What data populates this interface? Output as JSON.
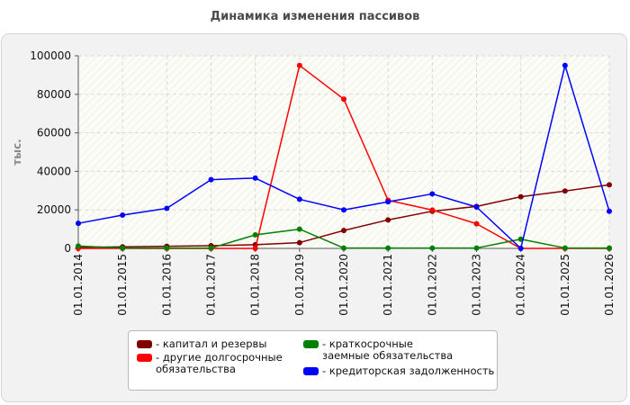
{
  "chart_data": {
    "type": "line",
    "title": "Динамика изменения пассивов",
    "ylabel": "тыс.",
    "xlabel": "",
    "categories": [
      "01.01.2014",
      "01.01.2015",
      "01.01.2016",
      "01.01.2017",
      "01.01.2018",
      "01.01.2019",
      "01.01.2020",
      "01.01.2021",
      "01.01.2022",
      "01.01.2023",
      "01.01.2024",
      "01.01.2025",
      "01.01.2026"
    ],
    "ylim": [
      0,
      100000
    ],
    "yticks": [
      0,
      20000,
      40000,
      60000,
      80000,
      100000
    ],
    "ytick_labels": [
      "0",
      "20000",
      "40000",
      "60000",
      "80000",
      "100000"
    ],
    "grid": true,
    "legend_position": "bottom",
    "series": [
      {
        "name": "капитал и резервы",
        "color": "#800000",
        "values": [
          500,
          800,
          1100,
          1400,
          1900,
          3000,
          9300,
          14800,
          19300,
          21800,
          26800,
          29800,
          33000
        ]
      },
      {
        "name": "другие долгосрочные обязательства",
        "color": "#ff0000",
        "values": [
          0,
          0,
          0,
          0,
          0,
          95000,
          77500,
          25000,
          19900,
          12800,
          0,
          0,
          0
        ]
      },
      {
        "name": "краткосрочные заемные обязательства",
        "color": "#008000",
        "values": [
          1200,
          200,
          200,
          200,
          7000,
          10000,
          200,
          200,
          200,
          200,
          4800,
          200,
          200
        ]
      },
      {
        "name": "кредиторская задолженность",
        "color": "#0000ff",
        "values": [
          13000,
          17300,
          20800,
          35700,
          36500,
          25500,
          20000,
          24200,
          28300,
          21500,
          0,
          95000,
          19300
        ]
      }
    ]
  }
}
